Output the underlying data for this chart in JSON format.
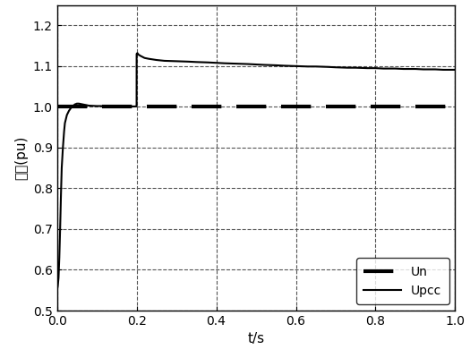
{
  "title": "",
  "xlabel": "t/s",
  "ylabel": "电压(pu)",
  "xlim": [
    0,
    1.0
  ],
  "ylim": [
    0.5,
    1.25
  ],
  "xticks": [
    0,
    0.2,
    0.4,
    0.6,
    0.8,
    1.0
  ],
  "yticks": [
    0.5,
    0.6,
    0.7,
    0.8,
    0.9,
    1.0,
    1.1,
    1.2
  ],
  "line_color": "#000000",
  "background_color": "#ffffff",
  "upcc": {
    "t": [
      0.0,
      0.002,
      0.004,
      0.006,
      0.008,
      0.01,
      0.012,
      0.015,
      0.018,
      0.02,
      0.025,
      0.03,
      0.035,
      0.04,
      0.045,
      0.05,
      0.055,
      0.06,
      0.07,
      0.08,
      0.1,
      0.12,
      0.15,
      0.18,
      0.19,
      0.195,
      0.1985,
      0.2,
      0.2001,
      0.202,
      0.205,
      0.21,
      0.22,
      0.23,
      0.25,
      0.27,
      0.3,
      0.33,
      0.35,
      0.38,
      0.4,
      0.42,
      0.45,
      0.48,
      0.5,
      0.52,
      0.55,
      0.57,
      0.6,
      0.63,
      0.65,
      0.68,
      0.7,
      0.73,
      0.75,
      0.78,
      0.8,
      0.82,
      0.85,
      0.87,
      0.9,
      0.92,
      0.95,
      0.97,
      1.0
    ],
    "v": [
      0.55,
      0.56,
      0.58,
      0.63,
      0.7,
      0.78,
      0.85,
      0.9,
      0.94,
      0.96,
      0.98,
      0.99,
      0.997,
      1.002,
      1.006,
      1.008,
      1.008,
      1.007,
      1.005,
      1.003,
      1.002,
      1.002,
      1.001,
      1.001,
      1.001,
      1.001,
      1.001,
      1.001,
      1.13,
      1.132,
      1.128,
      1.125,
      1.12,
      1.118,
      1.115,
      1.113,
      1.112,
      1.111,
      1.11,
      1.109,
      1.108,
      1.107,
      1.106,
      1.105,
      1.104,
      1.103,
      1.102,
      1.101,
      1.1,
      1.099,
      1.099,
      1.098,
      1.097,
      1.096,
      1.096,
      1.095,
      1.095,
      1.094,
      1.094,
      1.093,
      1.093,
      1.092,
      1.092,
      1.091,
      1.091
    ]
  },
  "un": {
    "t": [
      0.0,
      1.0
    ],
    "v": [
      1.0,
      1.0
    ]
  },
  "legend": {
    "upcc_label": "Upcc",
    "un_label": "Un",
    "loc": "lower right"
  },
  "grid_color": "#555555",
  "grid_linestyle": "--",
  "grid_linewidth": 0.8
}
